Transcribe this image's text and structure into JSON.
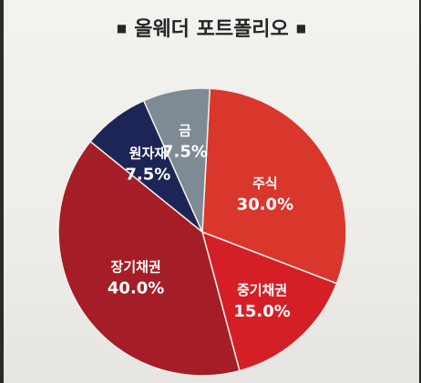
{
  "title": "올웨더 포트폴리오",
  "title_marker": "■",
  "chart_data": {
    "type": "pie",
    "title": "올웨더 포트폴리오",
    "slices": [
      {
        "label": "주식",
        "value": 30.0,
        "display": "30.0%",
        "color": "#d9362c"
      },
      {
        "label": "중기채권",
        "value": 15.0,
        "display": "15.0%",
        "color": "#d41f26"
      },
      {
        "label": "장기채권",
        "value": 40.0,
        "display": "40.0%",
        "color": "#a51d27"
      },
      {
        "label": "원자재",
        "value": 7.5,
        "display": "7.5%",
        "color": "#1d2557"
      },
      {
        "label": "금",
        "value": 7.5,
        "display": "7.5%",
        "color": "#7e8a94"
      }
    ]
  }
}
